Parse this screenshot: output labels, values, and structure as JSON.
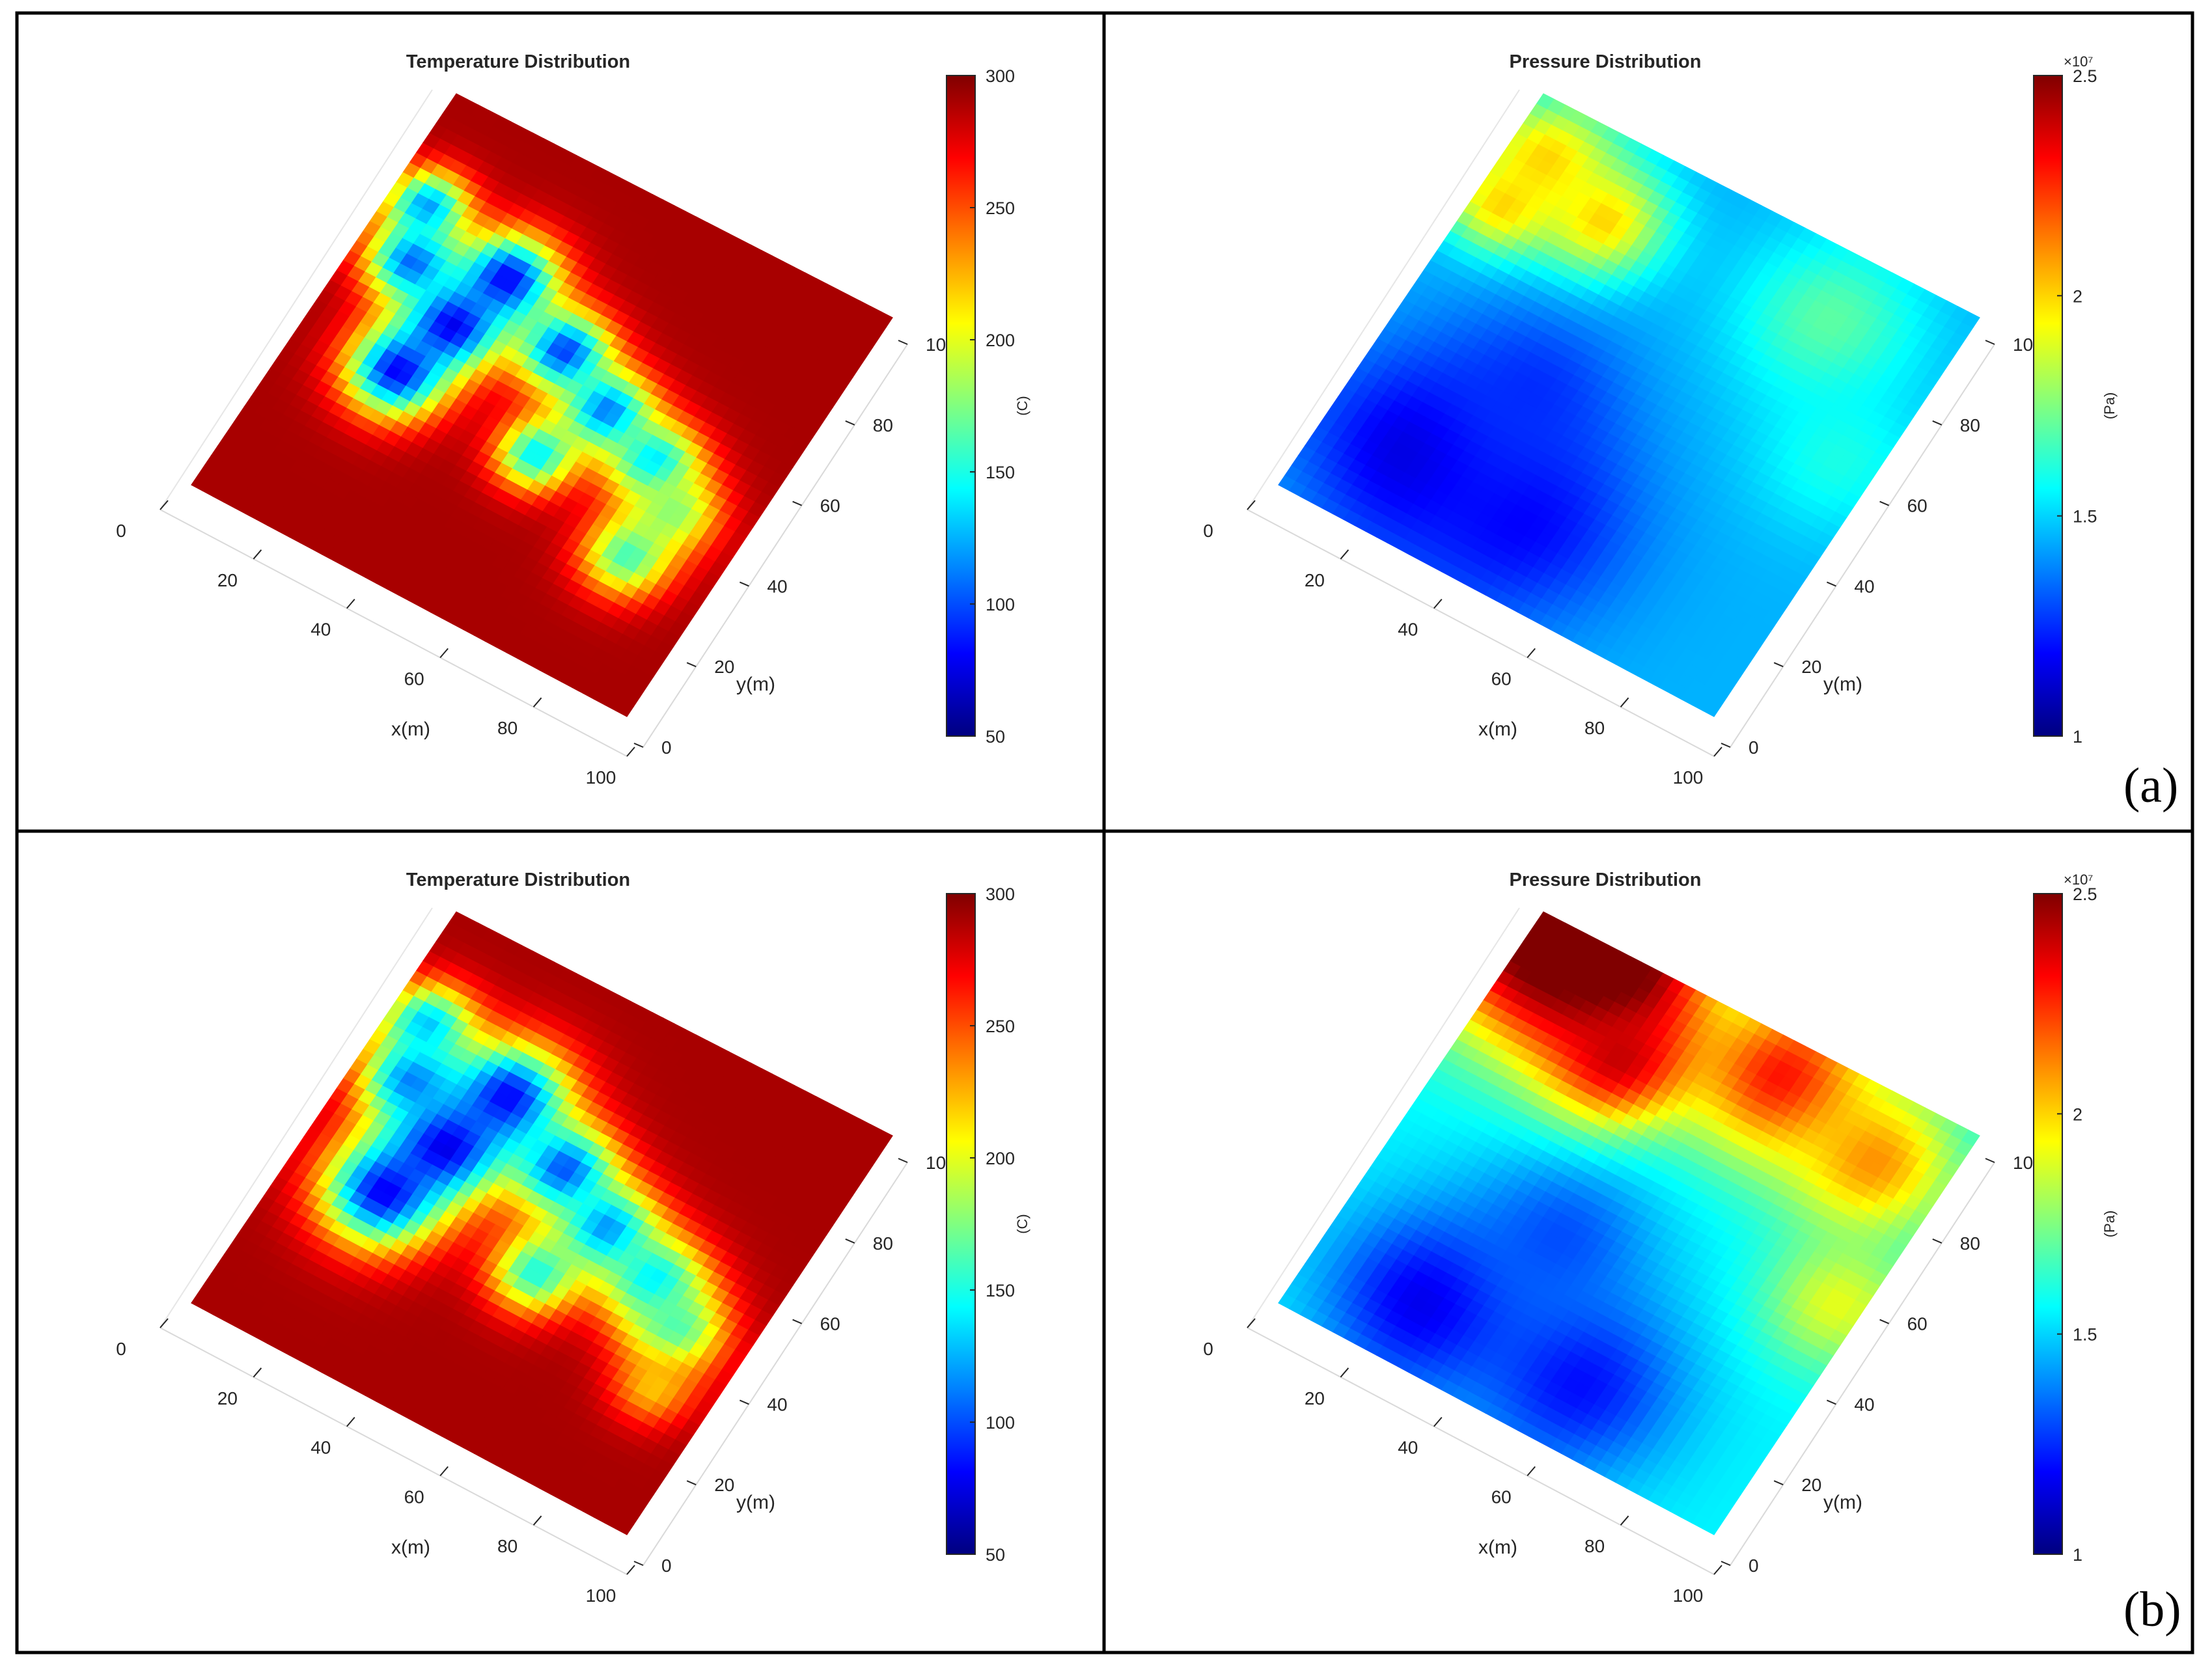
{
  "figure": {
    "rows": [
      {
        "label": "(a)"
      },
      {
        "label": "(b)"
      }
    ]
  },
  "chart_data": [
    {
      "id": "a-temperature",
      "type": "heatmap",
      "title": "Temperature Distribution",
      "xlabel": "x(m)",
      "ylabel": "y(m)",
      "x_ticks": [
        0,
        20,
        40,
        60,
        80,
        100
      ],
      "y_ticks": [
        0,
        20,
        40,
        60,
        80,
        100
      ],
      "xlim": [
        0,
        100
      ],
      "ylim": [
        0,
        100
      ],
      "colorbar": {
        "label": "(C)",
        "min": 50,
        "max": 300,
        "ticks": [
          50,
          100,
          150,
          200,
          250,
          300
        ],
        "ticklabels": [
          "50",
          "100",
          "150",
          "200",
          "250",
          "300"
        ],
        "exponent": "",
        "colormap": "jet"
      },
      "field": {
        "background": 290,
        "edge_width": 6,
        "blobs": [
          {
            "x": 22,
            "y": 42,
            "r": 7,
            "v": 80
          },
          {
            "x": 26,
            "y": 56,
            "r": 7,
            "v": 75
          },
          {
            "x": 30,
            "y": 70,
            "r": 7,
            "v": 80
          },
          {
            "x": 12,
            "y": 64,
            "r": 6,
            "v": 105
          },
          {
            "x": 8,
            "y": 76,
            "r": 5,
            "v": 120
          },
          {
            "x": 48,
            "y": 62,
            "r": 6,
            "v": 95
          },
          {
            "x": 62,
            "y": 55,
            "r": 6,
            "v": 110
          },
          {
            "x": 76,
            "y": 50,
            "r": 6,
            "v": 130
          },
          {
            "x": 85,
            "y": 43,
            "r": 6,
            "v": 180
          },
          {
            "x": 82,
            "y": 30,
            "r": 6,
            "v": 160
          },
          {
            "x": 55,
            "y": 40,
            "r": 5,
            "v": 140
          }
        ]
      }
    },
    {
      "id": "a-pressure",
      "type": "heatmap",
      "title": "Pressure Distribution",
      "xlabel": "x(m)",
      "ylabel": "y(m)",
      "x_ticks": [
        0,
        20,
        40,
        60,
        80,
        100
      ],
      "y_ticks": [
        0,
        20,
        40,
        60,
        80,
        100
      ],
      "xlim": [
        0,
        100
      ],
      "ylim": [
        0,
        100
      ],
      "colorbar": {
        "label": "(Pa)",
        "min": 1,
        "max": 2.5,
        "ticks": [
          1,
          1.5,
          2,
          2.5
        ],
        "ticklabels": [
          "1",
          "1.5",
          "2",
          "2.5"
        ],
        "exponent": "×10⁷",
        "colormap": "jet"
      },
      "field": {
        "background": 1.45,
        "edge_width": 0,
        "blobs": [
          {
            "x": 20,
            "y": 20,
            "r": 22,
            "v": 1.12
          },
          {
            "x": 45,
            "y": 18,
            "r": 22,
            "v": 1.18
          },
          {
            "x": 32,
            "y": 42,
            "r": 18,
            "v": 1.25
          },
          {
            "x": 8,
            "y": 88,
            "r": 14,
            "v": 2.0
          },
          {
            "x": 25,
            "y": 82,
            "r": 12,
            "v": 2.0
          },
          {
            "x": 6,
            "y": 75,
            "r": 10,
            "v": 2.0
          },
          {
            "x": 75,
            "y": 85,
            "r": 18,
            "v": 1.7
          },
          {
            "x": 92,
            "y": 60,
            "r": 16,
            "v": 1.6
          }
        ]
      }
    },
    {
      "id": "b-temperature",
      "type": "heatmap",
      "title": "Temperature Distribution",
      "xlabel": "x(m)",
      "ylabel": "y(m)",
      "x_ticks": [
        0,
        20,
        40,
        60,
        80,
        100
      ],
      "y_ticks": [
        0,
        20,
        40,
        60,
        80,
        100
      ],
      "xlim": [
        0,
        100
      ],
      "ylim": [
        0,
        100
      ],
      "colorbar": {
        "label": "(C)",
        "min": 50,
        "max": 300,
        "ticks": [
          50,
          100,
          150,
          200,
          250,
          300
        ],
        "ticklabels": [
          "50",
          "100",
          "150",
          "200",
          "250",
          "300"
        ],
        "exponent": "",
        "colormap": "jet"
      },
      "field": {
        "background": 290,
        "edge_width": 8,
        "blobs": [
          {
            "x": 20,
            "y": 40,
            "r": 8,
            "v": 80
          },
          {
            "x": 25,
            "y": 55,
            "r": 8,
            "v": 70
          },
          {
            "x": 30,
            "y": 70,
            "r": 8,
            "v": 80
          },
          {
            "x": 12,
            "y": 64,
            "r": 6,
            "v": 110
          },
          {
            "x": 8,
            "y": 76,
            "r": 5,
            "v": 130
          },
          {
            "x": 48,
            "y": 62,
            "r": 6,
            "v": 100
          },
          {
            "x": 62,
            "y": 55,
            "r": 6,
            "v": 115
          },
          {
            "x": 76,
            "y": 50,
            "r": 6,
            "v": 135
          },
          {
            "x": 85,
            "y": 43,
            "r": 6,
            "v": 160
          },
          {
            "x": 88,
            "y": 30,
            "r": 4,
            "v": 220
          },
          {
            "x": 55,
            "y": 40,
            "r": 5,
            "v": 150
          }
        ]
      }
    },
    {
      "id": "b-pressure",
      "type": "heatmap",
      "title": "Pressure Distribution",
      "xlabel": "x(m)",
      "ylabel": "y(m)",
      "x_ticks": [
        0,
        20,
        40,
        60,
        80,
        100
      ],
      "y_ticks": [
        0,
        20,
        40,
        60,
        80,
        100
      ],
      "xlim": [
        0,
        100
      ],
      "ylim": [
        0,
        100
      ],
      "colorbar": {
        "label": "(Pa)",
        "min": 1,
        "max": 2.5,
        "ticks": [
          1,
          1.5,
          2,
          2.5
        ],
        "ticklabels": [
          "1",
          "1.5",
          "2",
          "2.5"
        ],
        "exponent": "×10⁷",
        "colormap": "jet"
      },
      "field": {
        "background": 1.55,
        "edge_width": 0,
        "blobs": [
          {
            "x": 25,
            "y": 15,
            "r": 20,
            "v": 1.15
          },
          {
            "x": 60,
            "y": 15,
            "r": 20,
            "v": 1.2
          },
          {
            "x": 40,
            "y": 40,
            "r": 18,
            "v": 1.3
          },
          {
            "x": 5,
            "y": 95,
            "r": 22,
            "v": 2.6
          },
          {
            "x": 20,
            "y": 95,
            "r": 18,
            "v": 2.6
          },
          {
            "x": 30,
            "y": 80,
            "r": 14,
            "v": 2.4
          },
          {
            "x": 60,
            "y": 92,
            "r": 18,
            "v": 2.3
          },
          {
            "x": 85,
            "y": 85,
            "r": 16,
            "v": 2.1
          },
          {
            "x": 95,
            "y": 55,
            "r": 14,
            "v": 1.9
          }
        ]
      }
    }
  ]
}
